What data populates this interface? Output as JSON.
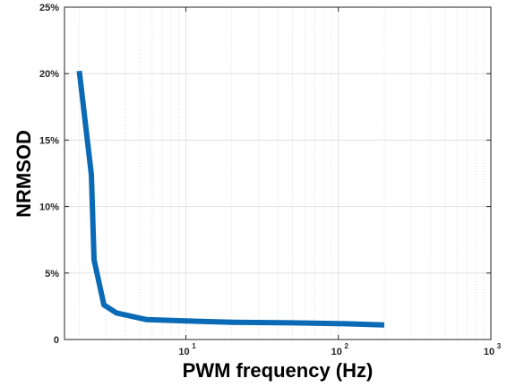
{
  "chart_data": {
    "type": "line",
    "title": "",
    "xlabel": "PWM frequency (Hz)",
    "ylabel": "NRMSOD",
    "x_scale": "log",
    "xlim": [
      1.6,
      1000
    ],
    "ylim": [
      0,
      25
    ],
    "grid": true,
    "x_ticks": [
      {
        "value": 10,
        "base": "10",
        "exp": "1"
      },
      {
        "value": 100,
        "base": "10",
        "exp": "2"
      },
      {
        "value": 1000,
        "base": "10",
        "exp": "3"
      }
    ],
    "y_ticks": [
      {
        "value": 0,
        "label": "0"
      },
      {
        "value": 5,
        "label": "5%"
      },
      {
        "value": 10,
        "label": "10%"
      },
      {
        "value": 15,
        "label": "15%"
      },
      {
        "value": 20,
        "label": "20%"
      },
      {
        "value": 25,
        "label": "25%"
      }
    ],
    "series": [
      {
        "color": "#0a6ab5",
        "x": [
          2,
          2.4,
          2.5,
          2.9,
          3.5,
          5.5,
          10,
          20,
          50,
          100,
          200
        ],
        "y": [
          20.2,
          12.4,
          6.0,
          2.6,
          2.0,
          1.5,
          1.4,
          1.3,
          1.25,
          1.2,
          1.1
        ]
      }
    ]
  }
}
